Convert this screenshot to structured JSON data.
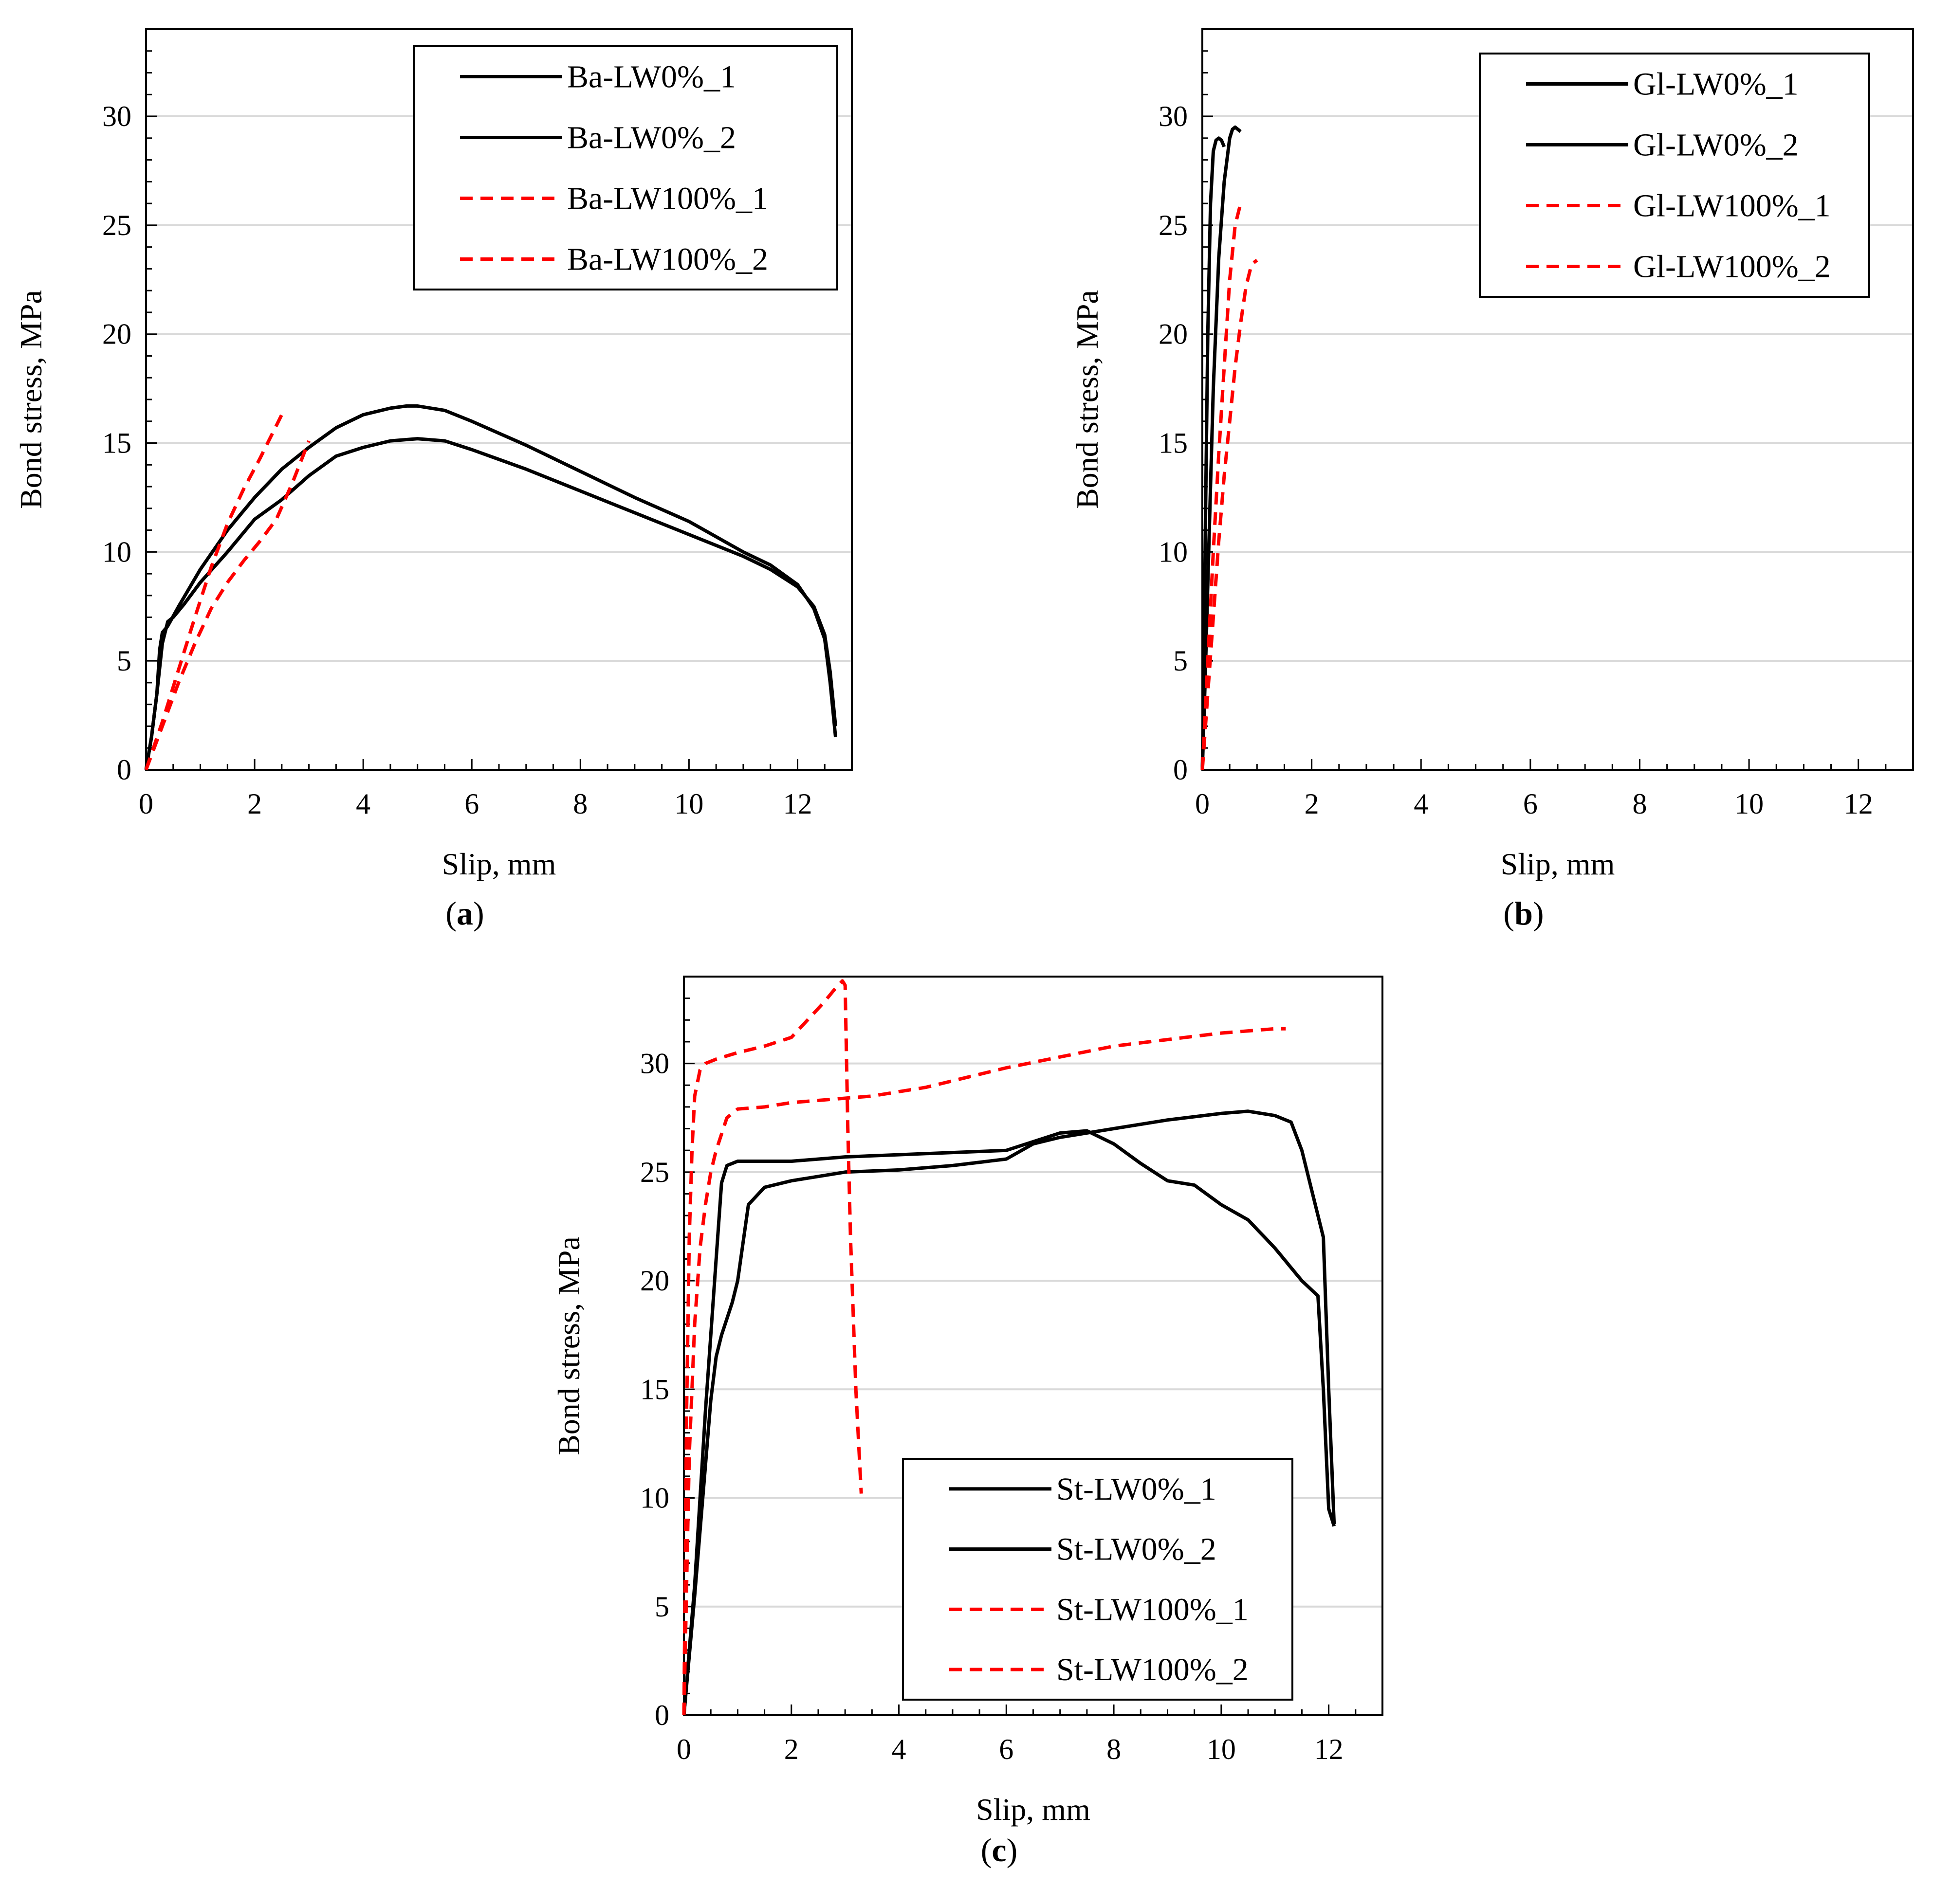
{
  "colors": {
    "series_black": "#000000",
    "series_red": "#ff0000",
    "grid": "#d9d9d9",
    "axis": "#000000",
    "background": "#ffffff"
  },
  "chart_data": [
    {
      "id": "a",
      "type": "line",
      "caption": {
        "open": "(",
        "letter": "a",
        "close": ")"
      },
      "xlabel": "Slip, mm",
      "ylabel": "Bond stress, MPa",
      "xlim": [
        0,
        13
      ],
      "ylim": [
        0,
        34
      ],
      "xticks": [
        0,
        2,
        4,
        6,
        8,
        10,
        12
      ],
      "yticks": [
        0,
        5,
        10,
        15,
        20,
        25,
        30
      ],
      "grid": "horizontal",
      "legend_position": "top-right",
      "series": [
        {
          "name": "Ba-LW0%_1",
          "color": "#000000",
          "dash": "solid",
          "x": [
            0,
            0.1,
            0.2,
            0.25,
            0.3,
            0.4,
            0.6,
            1.0,
            1.5,
            2.0,
            2.5,
            3.0,
            3.5,
            4.0,
            4.5,
            4.8,
            5.0,
            5.5,
            6.0,
            7.0,
            8.0,
            9.0,
            10.0,
            11.0,
            11.5,
            12.0,
            12.3,
            12.5,
            12.6,
            12.7
          ],
          "y": [
            0,
            1.5,
            3.5,
            5.5,
            6.3,
            6.6,
            7.5,
            9.2,
            11.0,
            12.5,
            13.8,
            14.8,
            15.7,
            16.3,
            16.6,
            16.7,
            16.7,
            16.5,
            16.0,
            14.9,
            13.7,
            12.5,
            11.4,
            10.0,
            9.4,
            8.5,
            7.4,
            6.0,
            4.0,
            1.5
          ]
        },
        {
          "name": "Ba-LW0%_2",
          "color": "#000000",
          "dash": "solid",
          "x": [
            0,
            0.1,
            0.2,
            0.3,
            0.4,
            0.5,
            0.7,
            1.0,
            1.5,
            2.0,
            2.5,
            3.0,
            3.5,
            4.0,
            4.5,
            5.0,
            5.5,
            6.0,
            7.0,
            8.0,
            9.0,
            10.0,
            11.0,
            11.5,
            12.0,
            12.3,
            12.5,
            12.6,
            12.7
          ],
          "y": [
            0,
            1.5,
            3.5,
            5.8,
            6.8,
            7.0,
            7.6,
            8.6,
            10.0,
            11.5,
            12.4,
            13.5,
            14.4,
            14.8,
            15.1,
            15.2,
            15.1,
            14.7,
            13.8,
            12.8,
            11.8,
            10.8,
            9.8,
            9.2,
            8.4,
            7.5,
            6.2,
            4.5,
            2.0
          ]
        },
        {
          "name": "Ba-LW100%_1",
          "color": "#ff0000",
          "dash": "dashed",
          "x": [
            0,
            0.3,
            0.6,
            0.9,
            1.2,
            1.5,
            1.8,
            2.1,
            2.3,
            2.5
          ],
          "y": [
            0,
            2.2,
            4.6,
            7.0,
            9.3,
            11.3,
            12.9,
            14.3,
            15.3,
            16.3
          ]
        },
        {
          "name": "Ba-LW100%_2",
          "color": "#ff0000",
          "dash": "dashed",
          "x": [
            0,
            0.3,
            0.6,
            0.9,
            1.2,
            1.5,
            1.8,
            2.1,
            2.4,
            2.7,
            3.0
          ],
          "y": [
            0,
            2.0,
            4.0,
            5.8,
            7.4,
            8.6,
            9.6,
            10.5,
            11.5,
            13.2,
            15.1
          ]
        }
      ],
      "legend": [
        "Ba-LW0%_1",
        "Ba-LW0%_2",
        "Ba-LW100%_1",
        "Ba-LW100%_2"
      ]
    },
    {
      "id": "b",
      "type": "line",
      "caption": {
        "open": "(",
        "letter": "b",
        "close": ")"
      },
      "xlabel": "Slip, mm",
      "ylabel": "Bond stress, MPa",
      "xlim": [
        0,
        13
      ],
      "ylim": [
        0,
        34
      ],
      "xticks": [
        0,
        2,
        4,
        6,
        8,
        10,
        12
      ],
      "yticks": [
        0,
        5,
        10,
        15,
        20,
        25,
        30
      ],
      "grid": "horizontal",
      "legend_position": "top-right",
      "series": [
        {
          "name": "Gl-LW0%_1",
          "color": "#000000",
          "dash": "solid",
          "x": [
            0,
            0.03,
            0.06,
            0.1,
            0.15,
            0.2,
            0.25,
            0.3,
            0.35,
            0.4
          ],
          "y": [
            0,
            5.0,
            12.0,
            20.0,
            26.0,
            28.4,
            28.9,
            29.0,
            28.9,
            28.6
          ]
        },
        {
          "name": "Gl-LW0%_2",
          "color": "#000000",
          "dash": "solid",
          "x": [
            0,
            0.05,
            0.1,
            0.15,
            0.2,
            0.3,
            0.4,
            0.5,
            0.55,
            0.6,
            0.7
          ],
          "y": [
            0,
            4.0,
            8.5,
            13.0,
            17.5,
            23.5,
            27.0,
            29.0,
            29.4,
            29.5,
            29.3
          ]
        },
        {
          "name": "Gl-LW100%_1",
          "color": "#ff0000",
          "dash": "dashed",
          "x": [
            0,
            0.1,
            0.2,
            0.3,
            0.4,
            0.5,
            0.6,
            0.7,
            0.75
          ],
          "y": [
            0,
            5.0,
            10.0,
            14.5,
            18.5,
            22.5,
            25.0,
            26.0,
            25.9
          ]
        },
        {
          "name": "Gl-LW100%_2",
          "color": "#ff0000",
          "dash": "dashed",
          "x": [
            0,
            0.1,
            0.2,
            0.3,
            0.4,
            0.5,
            0.6,
            0.7,
            0.8,
            0.9,
            1.0
          ],
          "y": [
            0,
            3.5,
            7.0,
            10.5,
            13.5,
            16.0,
            18.5,
            20.5,
            22.2,
            23.2,
            23.4
          ]
        }
      ],
      "legend": [
        "Gl-LW0%_1",
        "Gl-LW0%_2",
        "Gl-LW100%_1",
        "Gl-LW100%_2"
      ]
    },
    {
      "id": "c",
      "type": "line",
      "caption": {
        "open": "(",
        "letter": "c",
        "close": ")"
      },
      "xlabel": "Slip, mm",
      "ylabel": "Bond stress, MPa",
      "xlim": [
        0,
        13
      ],
      "ylim": [
        0,
        34
      ],
      "xticks": [
        0,
        2,
        4,
        6,
        8,
        10,
        12
      ],
      "yticks": [
        0,
        5,
        10,
        15,
        20,
        25,
        30
      ],
      "grid": "horizontal",
      "legend_position": "bottom-center",
      "series": [
        {
          "name": "St-LW0%_1",
          "color": "#000000",
          "dash": "solid",
          "x": [
            0,
            0.2,
            0.4,
            0.6,
            0.7,
            0.8,
            1.0,
            1.5,
            2.0,
            3.0,
            4.0,
            5.0,
            6.0,
            6.5,
            7.0,
            7.5,
            8.0,
            8.5,
            9.0,
            9.5,
            10.0,
            10.5,
            11.0,
            11.5,
            11.8,
            11.9,
            12.0,
            12.1
          ],
          "y": [
            0,
            6.0,
            14.0,
            21.0,
            24.5,
            25.3,
            25.5,
            25.5,
            25.5,
            25.7,
            25.8,
            25.9,
            26.0,
            26.4,
            26.8,
            26.9,
            26.3,
            25.4,
            24.6,
            24.4,
            23.5,
            22.8,
            21.5,
            20.0,
            19.3,
            15.0,
            9.5,
            8.7
          ]
        },
        {
          "name": "St-LW0%_2",
          "color": "#000000",
          "dash": "solid",
          "x": [
            0,
            0.2,
            0.4,
            0.5,
            0.6,
            0.7,
            0.9,
            1.0,
            1.2,
            1.5,
            2.0,
            3.0,
            4.0,
            5.0,
            6.0,
            6.5,
            7.0,
            8.0,
            9.0,
            10.0,
            10.5,
            11.0,
            11.3,
            11.5,
            11.7,
            11.9,
            12.0,
            12.1
          ],
          "y": [
            0,
            5.5,
            11.5,
            14.5,
            16.5,
            17.5,
            19.0,
            20.0,
            23.5,
            24.3,
            24.6,
            25.0,
            25.1,
            25.3,
            25.6,
            26.3,
            26.6,
            27.0,
            27.4,
            27.7,
            27.8,
            27.6,
            27.3,
            26.0,
            24.0,
            22.0,
            15.0,
            8.8
          ]
        },
        {
          "name": "St-LW100%_1",
          "color": "#ff0000",
          "dash": "dashed",
          "x": [
            0,
            0.05,
            0.1,
            0.15,
            0.2,
            0.3,
            0.4,
            0.6,
            1.0,
            1.5,
            2.0,
            2.3,
            2.6,
            2.8,
            2.95,
            3.0,
            3.05,
            3.1,
            3.2,
            3.3
          ],
          "y": [
            0,
            14.0,
            22.0,
            26.0,
            28.5,
            29.7,
            30.0,
            30.2,
            30.5,
            30.8,
            31.2,
            32.0,
            32.8,
            33.4,
            33.8,
            33.6,
            27.0,
            22.0,
            15.0,
            10.2
          ]
        },
        {
          "name": "St-LW100%_2",
          "color": "#ff0000",
          "dash": "dashed",
          "x": [
            0,
            0.1,
            0.2,
            0.3,
            0.4,
            0.5,
            0.6,
            0.8,
            1.0,
            1.5,
            2.0,
            2.5,
            3.0,
            3.5,
            4.0,
            4.5,
            5.0,
            6.0,
            7.0,
            8.0,
            9.0,
            10.0,
            11.0,
            11.2
          ],
          "y": [
            0,
            12.0,
            18.0,
            21.5,
            23.5,
            25.0,
            26.0,
            27.5,
            27.9,
            28.0,
            28.2,
            28.3,
            28.4,
            28.5,
            28.7,
            28.9,
            29.2,
            29.8,
            30.3,
            30.8,
            31.1,
            31.4,
            31.6,
            31.6
          ]
        }
      ],
      "legend": [
        "St-LW0%_1",
        "St-LW0%_2",
        "St-LW100%_1",
        "St-LW100%_2"
      ]
    }
  ]
}
